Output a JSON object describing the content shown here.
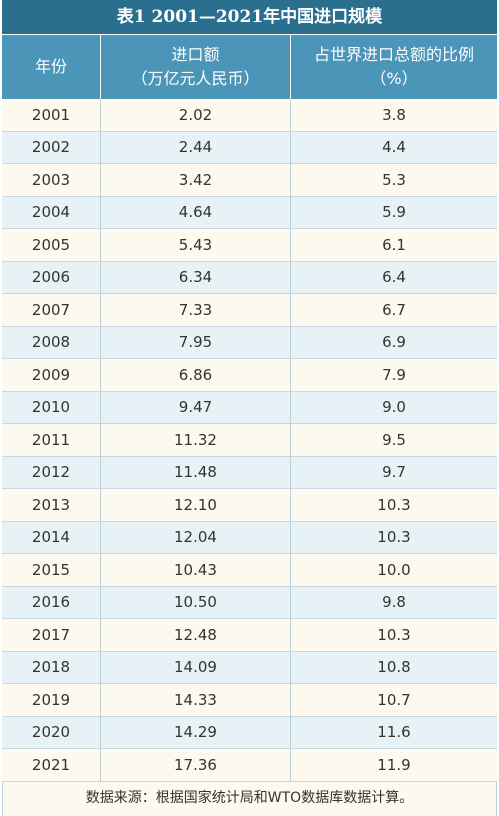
{
  "table": {
    "title": "表1  2001—2021年中国进口规模",
    "headers": {
      "year": "年份",
      "import_line1": "进口额",
      "import_line2": "（万亿元人民币）",
      "share_line1": "占世界进口总额的比例",
      "share_line2": "（%）"
    },
    "rows": [
      {
        "year": "2001",
        "amount": "2.02",
        "share": "3.8"
      },
      {
        "year": "2002",
        "amount": "2.44",
        "share": "4.4"
      },
      {
        "year": "2003",
        "amount": "3.42",
        "share": "5.3"
      },
      {
        "year": "2004",
        "amount": "4.64",
        "share": "5.9"
      },
      {
        "year": "2005",
        "amount": "5.43",
        "share": "6.1"
      },
      {
        "year": "2006",
        "amount": "6.34",
        "share": "6.4"
      },
      {
        "year": "2007",
        "amount": "7.33",
        "share": "6.7"
      },
      {
        "year": "2008",
        "amount": "7.95",
        "share": "6.9"
      },
      {
        "year": "2009",
        "amount": "6.86",
        "share": "7.9"
      },
      {
        "year": "2010",
        "amount": "9.47",
        "share": "9.0"
      },
      {
        "year": "2011",
        "amount": "11.32",
        "share": "9.5"
      },
      {
        "year": "2012",
        "amount": "11.48",
        "share": "9.7"
      },
      {
        "year": "2013",
        "amount": "12.10",
        "share": "10.3"
      },
      {
        "year": "2014",
        "amount": "12.04",
        "share": "10.3"
      },
      {
        "year": "2015",
        "amount": "10.43",
        "share": "10.0"
      },
      {
        "year": "2016",
        "amount": "10.50",
        "share": "9.8"
      },
      {
        "year": "2017",
        "amount": "12.48",
        "share": "10.3"
      },
      {
        "year": "2018",
        "amount": "14.09",
        "share": "10.8"
      },
      {
        "year": "2019",
        "amount": "14.33",
        "share": "10.7"
      },
      {
        "year": "2020",
        "amount": "14.29",
        "share": "11.6"
      },
      {
        "year": "2021",
        "amount": "17.36",
        "share": "11.9"
      }
    ],
    "source": "数据来源：根据国家统计局和WTO数据库数据计算。"
  }
}
